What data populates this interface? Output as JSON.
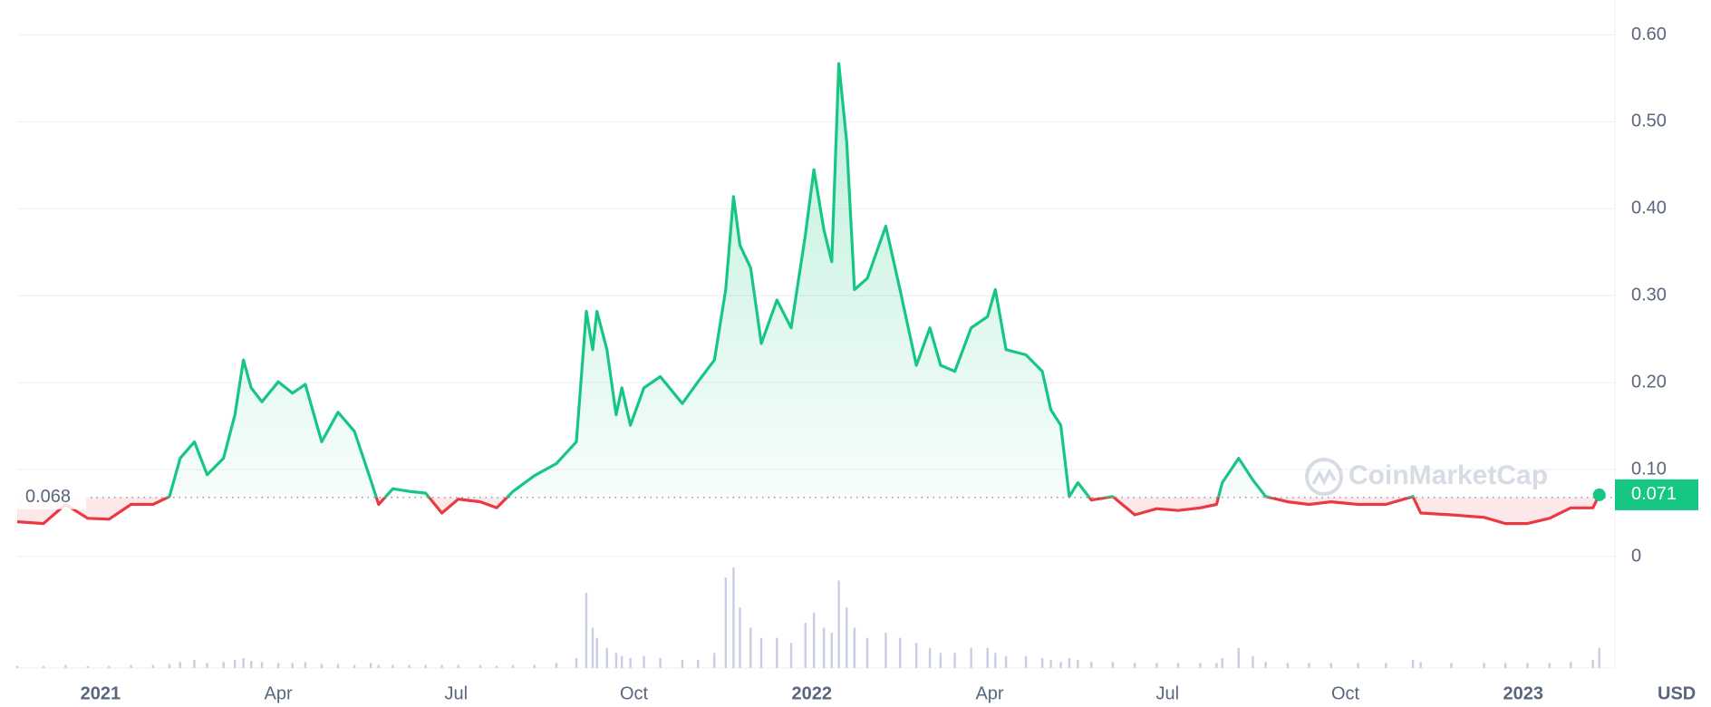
{
  "chart_data": {
    "type": "line",
    "watermark": "CoinMarketCap",
    "currency": "USD",
    "reference": 0.068,
    "last_price": 0.071,
    "up_color": "#16c784",
    "down_color": "#ea3943",
    "grid": true,
    "xlim": [
      2020.883,
      2023.129
    ],
    "ylim": [
      0,
      0.6
    ],
    "vlim": [
      0,
      100
    ],
    "xticks": [
      2021,
      {
        "value": 2021.25,
        "label": "Apr"
      },
      {
        "value": 2021.5,
        "label": "Jul"
      },
      {
        "value": 2021.75,
        "label": "Oct"
      },
      2022,
      {
        "value": 2022.25,
        "label": "Apr"
      },
      {
        "value": 2022.5,
        "label": "Jul"
      },
      {
        "value": 2022.75,
        "label": "Oct"
      },
      2023
    ],
    "yticks": [
      0,
      {
        "value": 0.1,
        "label": "0.10"
      },
      {
        "value": 0.2,
        "label": "0.20"
      },
      {
        "value": 0.3,
        "label": "0.30"
      },
      {
        "value": 0.4,
        "label": "0.40"
      },
      {
        "value": 0.5,
        "label": "0.50"
      },
      {
        "value": 0.6,
        "label": "0.60"
      }
    ],
    "x": [
      2020.883,
      2020.92,
      2020.951,
      2020.982,
      2021.012,
      2021.043,
      2021.074,
      2021.097,
      2021.112,
      2021.132,
      2021.15,
      2021.173,
      2021.189,
      2021.201,
      2021.212,
      2021.227,
      2021.25,
      2021.27,
      2021.288,
      2021.311,
      2021.334,
      2021.357,
      2021.38,
      2021.391,
      2021.411,
      2021.434,
      2021.457,
      2021.48,
      2021.503,
      2021.534,
      2021.557,
      2021.58,
      2021.61,
      2021.641,
      2021.669,
      2021.683,
      2021.692,
      2021.698,
      2021.712,
      2021.725,
      2021.733,
      2021.745,
      2021.764,
      2021.787,
      2021.818,
      2021.84,
      2021.863,
      2021.879,
      2021.89,
      2021.899,
      2021.914,
      2021.929,
      2021.951,
      2021.971,
      2021.991,
      2022.003,
      2022.017,
      2022.028,
      2022.038,
      2022.049,
      2022.06,
      2022.078,
      2022.104,
      2022.124,
      2022.147,
      2022.166,
      2022.181,
      2022.201,
      2022.224,
      2022.247,
      2022.258,
      2022.273,
      2022.301,
      2022.324,
      2022.336,
      2022.35,
      2022.362,
      2022.374,
      2022.393,
      2022.423,
      2022.454,
      2022.485,
      2022.515,
      2022.546,
      2022.569,
      2022.577,
      2022.6,
      2022.62,
      2022.638,
      2022.669,
      2022.699,
      2022.73,
      2022.768,
      2022.807,
      2022.845,
      2022.856,
      2022.899,
      2022.945,
      2022.975,
      2023.006,
      2023.037,
      2023.067,
      2023.098,
      2023.107
    ],
    "series": [
      {
        "name": "Price",
        "values": [
          0.04,
          0.038,
          0.06,
          0.044,
          0.043,
          0.06,
          0.06,
          0.069,
          0.113,
          0.132,
          0.094,
          0.113,
          0.163,
          0.226,
          0.194,
          0.178,
          0.201,
          0.188,
          0.198,
          0.132,
          0.166,
          0.144,
          0.088,
          0.06,
          0.078,
          0.075,
          0.073,
          0.05,
          0.066,
          0.063,
          0.056,
          0.075,
          0.093,
          0.107,
          0.132,
          0.282,
          0.238,
          0.282,
          0.238,
          0.163,
          0.194,
          0.151,
          0.194,
          0.207,
          0.176,
          0.201,
          0.226,
          0.307,
          0.414,
          0.358,
          0.332,
          0.245,
          0.295,
          0.263,
          0.37,
          0.445,
          0.376,
          0.339,
          0.567,
          0.477,
          0.307,
          0.32,
          0.38,
          0.307,
          0.22,
          0.263,
          0.22,
          0.213,
          0.263,
          0.276,
          0.307,
          0.238,
          0.232,
          0.213,
          0.169,
          0.151,
          0.069,
          0.085,
          0.065,
          0.069,
          0.048,
          0.055,
          0.053,
          0.056,
          0.06,
          0.085,
          0.113,
          0.088,
          0.069,
          0.063,
          0.06,
          0.063,
          0.06,
          0.06,
          0.069,
          0.05,
          0.048,
          0.045,
          0.038,
          0.038,
          0.044,
          0.056,
          0.056,
          0.071
        ]
      },
      {
        "name": "Volume",
        "color": "#c9cde3",
        "values": [
          2,
          2,
          3,
          2,
          2,
          3,
          3,
          4,
          6,
          8,
          5,
          6,
          8,
          10,
          7,
          6,
          5,
          5,
          6,
          4,
          4,
          3,
          5,
          3,
          3,
          3,
          3,
          3,
          3,
          3,
          2,
          3,
          3,
          5,
          10,
          75,
          40,
          30,
          20,
          15,
          12,
          10,
          12,
          10,
          8,
          8,
          15,
          90,
          100,
          60,
          40,
          30,
          30,
          25,
          45,
          55,
          40,
          35,
          87,
          60,
          40,
          30,
          35,
          30,
          25,
          20,
          15,
          15,
          20,
          20,
          15,
          12,
          12,
          10,
          8,
          6,
          10,
          8,
          6,
          6,
          5,
          5,
          5,
          5,
          5,
          10,
          20,
          12,
          6,
          5,
          5,
          5,
          5,
          5,
          8,
          6,
          5,
          5,
          5,
          5,
          5,
          6,
          8,
          20
        ]
      }
    ]
  }
}
